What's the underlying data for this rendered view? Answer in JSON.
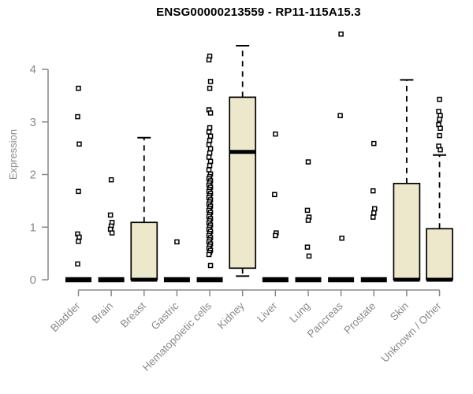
{
  "chart_data": {
    "type": "boxplot",
    "title": "ENSG00000213559 - RP11-115A15.3",
    "ylabel": "Expression",
    "yticks": [
      0,
      1,
      2,
      3,
      4
    ],
    "ylim": [
      0,
      4.7
    ],
    "grid": false,
    "legend": "none",
    "categories": [
      "Bladder",
      "Brain",
      "Breast",
      "Gastric",
      "Hematopoietic cells",
      "Kidney",
      "Liver",
      "Lung",
      "Pancreas",
      "Prostate",
      "Skin",
      "Unknown / Other"
    ],
    "boxes": [
      {
        "category": "Bladder",
        "q1": 0,
        "median": 0,
        "q3": 0,
        "whisker_low": 0,
        "whisker_high": 0,
        "outliers": [
          3.64,
          3.1,
          2.58,
          1.68,
          0.87,
          0.81,
          0.73,
          0.3
        ]
      },
      {
        "category": "Brain",
        "q1": 0,
        "median": 0,
        "q3": 0,
        "whisker_low": 0,
        "whisker_high": 0,
        "outliers": [
          1.9,
          1.23,
          1.09,
          1.02,
          0.96,
          0.89
        ]
      },
      {
        "category": "Breast",
        "q1": 0,
        "median": 0,
        "q3": 1.09,
        "whisker_low": 0,
        "whisker_high": 2.7,
        "outliers": []
      },
      {
        "category": "Gastric",
        "q1": 0,
        "median": 0,
        "q3": 0,
        "whisker_low": 0,
        "whisker_high": 0,
        "outliers": [
          0.72
        ]
      },
      {
        "category": "Hematopoietic cells",
        "q1": 0,
        "median": 0,
        "q3": 0,
        "whisker_low": 0,
        "whisker_high": 0,
        "outliers": [
          4.25,
          4.18,
          3.77,
          3.64,
          3.23,
          3.17,
          2.89,
          2.81,
          2.73,
          2.65,
          2.57,
          2.49,
          2.41,
          2.33,
          2.25,
          2.17,
          2.09,
          2.01,
          1.96,
          1.92,
          1.88,
          1.84,
          1.8,
          1.76,
          1.72,
          1.68,
          1.64,
          1.6,
          1.56,
          1.52,
          1.48,
          1.44,
          1.4,
          1.36,
          1.32,
          1.28,
          1.24,
          1.2,
          1.16,
          1.12,
          1.08,
          1.04,
          1.0,
          0.96,
          0.92,
          0.88,
          0.84,
          0.8,
          0.76,
          0.72,
          0.68,
          0.64,
          0.6,
          0.56,
          0.52,
          0.48,
          0.27
        ]
      },
      {
        "category": "Kidney",
        "q1": 0.22,
        "median": 2.43,
        "q3": 3.47,
        "whisker_low": 0.07,
        "whisker_high": 4.45,
        "outliers": []
      },
      {
        "category": "Liver",
        "q1": 0,
        "median": 0,
        "q3": 0,
        "whisker_low": 0,
        "whisker_high": 0,
        "outliers": [
          2.77,
          1.62,
          0.89,
          0.84
        ]
      },
      {
        "category": "Lung",
        "q1": 0,
        "median": 0,
        "q3": 0,
        "whisker_low": 0,
        "whisker_high": 0,
        "outliers": [
          2.24,
          1.32,
          1.19,
          1.13,
          0.62,
          0.45
        ]
      },
      {
        "category": "Pancreas",
        "q1": 0,
        "median": 0,
        "q3": 0,
        "whisker_low": 0,
        "whisker_high": 0,
        "outliers": [
          4.67,
          3.12,
          0.79
        ]
      },
      {
        "category": "Prostate",
        "q1": 0,
        "median": 0,
        "q3": 0,
        "whisker_low": 0,
        "whisker_high": 0,
        "outliers": [
          2.59,
          1.69,
          1.35,
          1.27,
          1.19
        ]
      },
      {
        "category": "Skin",
        "q1": 0,
        "median": 0,
        "q3": 1.83,
        "whisker_low": 0,
        "whisker_high": 3.8,
        "outliers": []
      },
      {
        "category": "Unknown / Other",
        "q1": 0,
        "median": 0,
        "q3": 0.97,
        "whisker_low": 0,
        "whisker_high": 2.37,
        "outliers": [
          3.43,
          3.2,
          3.12,
          3.05,
          2.95,
          2.88,
          2.74,
          2.54,
          2.47
        ]
      }
    ],
    "colors": {
      "box_fill": "#ede8cc",
      "box_stroke": "#000000",
      "median": "#000000",
      "whisker": "#000000",
      "outlier": "#000000",
      "axis": "#888888",
      "tick_label": "#8a8a8a",
      "title": "#000000",
      "background": "#ffffff"
    }
  }
}
